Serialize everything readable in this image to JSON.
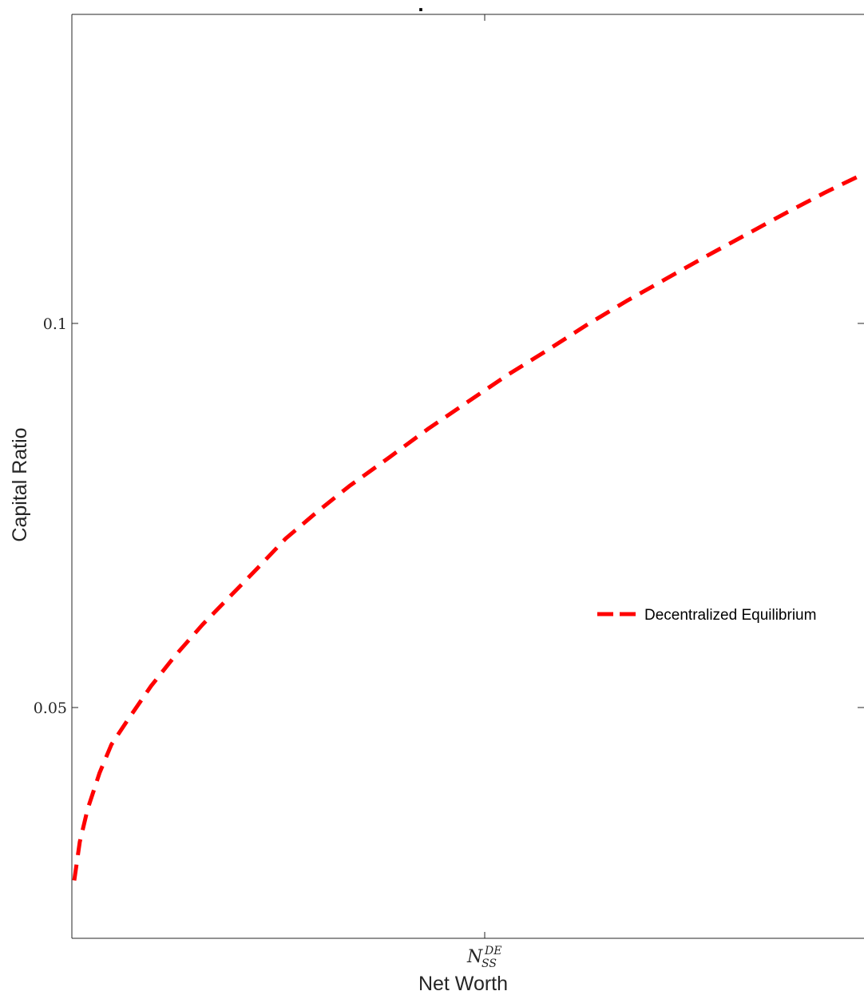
{
  "chart_data": {
    "type": "line",
    "title": ".",
    "xlabel": "Net Worth",
    "ylabel": "Capital Ratio",
    "x_ticks": [
      {
        "x": 0.5,
        "main": "N",
        "sup": "DE",
        "sub": "SS"
      }
    ],
    "y_ticks": [
      {
        "value": 0.05,
        "label": "0.05"
      },
      {
        "value": 0.1,
        "label": "0.1"
      }
    ],
    "xlim": [
      0,
      1
    ],
    "ylim": [
      0.02,
      0.138
    ],
    "grid": false,
    "legend_position": "center-right",
    "series": [
      {
        "name": "Decentralized Equilibrium",
        "color": "#ff0000",
        "style": "dashed",
        "x": [
          0.003,
          0.01,
          0.02,
          0.035,
          0.05,
          0.07,
          0.1,
          0.13,
          0.165,
          0.2,
          0.235,
          0.27,
          0.31,
          0.35,
          0.4,
          0.45,
          0.5,
          0.55,
          0.6,
          0.65,
          0.7,
          0.75,
          0.8,
          0.85,
          0.9,
          0.95,
          1.0
        ],
        "y": [
          0.0275,
          0.0325,
          0.0368,
          0.0415,
          0.0452,
          0.0483,
          0.0528,
          0.0567,
          0.0608,
          0.0645,
          0.0682,
          0.072,
          0.0755,
          0.0788,
          0.0825,
          0.0863,
          0.0898,
          0.0933,
          0.0965,
          0.0998,
          0.1029,
          0.1058,
          0.1087,
          0.1115,
          0.1143,
          0.117,
          0.1195
        ]
      }
    ]
  }
}
